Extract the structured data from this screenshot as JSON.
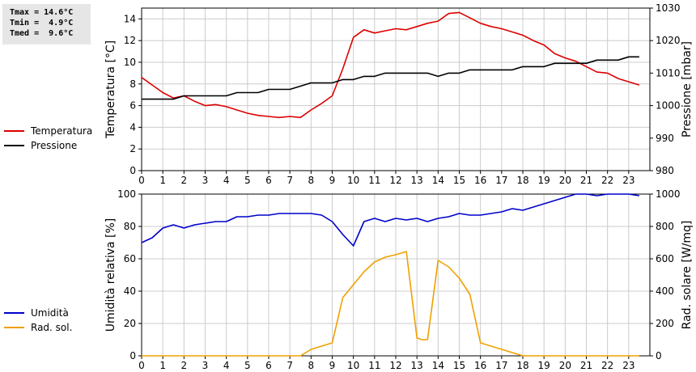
{
  "stats": {
    "tmax": "Tmax = 14.6°C",
    "tmin": "Tmin =  4.9°C",
    "tmed": "Tmed =  9.6°C"
  },
  "colors": {
    "temperature": "#dd0000",
    "pressure": "#000000",
    "humidity": "#0000cc",
    "solar": "#f0a000",
    "grid": "#cccccc"
  },
  "chart_data": [
    {
      "type": "line",
      "xlabel": "",
      "ylabel": "Temperatura [°C]",
      "y2label": "Pressione [mbar]",
      "xlim": [
        0,
        24
      ],
      "ylim": [
        0,
        15
      ],
      "y2lim": [
        980,
        1030
      ],
      "grid": true,
      "legend_placement": "left",
      "x_ticks": [
        "0",
        "1",
        "2",
        "3",
        "4",
        "5",
        "6",
        "7",
        "8",
        "9",
        "10",
        "11",
        "12",
        "13",
        "14",
        "15",
        "16",
        "17",
        "18",
        "19",
        "20",
        "21",
        "22",
        "23"
      ],
      "y_ticks": [
        "0",
        "2",
        "4",
        "6",
        "8",
        "10",
        "12",
        "14"
      ],
      "y2_ticks": [
        "980",
        "990",
        "1000",
        "1010",
        "1020",
        "1030"
      ],
      "series": [
        {
          "name": "Temperatura",
          "axis": "left",
          "color": "#dd0000",
          "x": [
            0,
            0.5,
            1,
            1.5,
            2,
            2.5,
            3,
            3.5,
            4,
            4.5,
            5,
            5.5,
            6,
            6.5,
            7,
            7.5,
            8,
            8.5,
            9,
            9.5,
            10,
            10.5,
            11,
            11.5,
            12,
            12.5,
            13,
            13.5,
            14,
            14.5,
            15,
            15.5,
            16,
            16.5,
            17,
            17.5,
            18,
            18.5,
            19,
            19.5,
            20,
            20.5,
            21,
            21.5,
            22,
            22.5,
            23,
            23.5
          ],
          "y": [
            8.6,
            7.9,
            7.2,
            6.7,
            6.9,
            6.4,
            6.0,
            6.1,
            5.9,
            5.6,
            5.3,
            5.1,
            5.0,
            4.9,
            5.0,
            4.9,
            5.6,
            6.2,
            6.9,
            9.4,
            12.3,
            13.0,
            12.7,
            12.9,
            13.1,
            13.0,
            13.3,
            13.6,
            13.8,
            14.5,
            14.6,
            14.1,
            13.6,
            13.3,
            13.1,
            12.8,
            12.5,
            12.0,
            11.6,
            10.8,
            10.4,
            10.1,
            9.6,
            9.1,
            9.0,
            8.5,
            8.2,
            7.9
          ]
        },
        {
          "name": "Pressione",
          "axis": "right",
          "color": "#000000",
          "x": [
            0,
            0.5,
            1,
            1.5,
            2,
            2.5,
            3,
            3.5,
            4,
            4.5,
            5,
            5.5,
            6,
            6.5,
            7,
            7.5,
            8,
            8.5,
            9,
            9.5,
            10,
            10.5,
            11,
            11.5,
            12,
            12.5,
            13,
            13.5,
            14,
            14.5,
            15,
            15.5,
            16,
            16.5,
            17,
            17.5,
            18,
            18.5,
            19,
            19.5,
            20,
            20.5,
            21,
            21.5,
            22,
            22.5,
            23,
            23.5
          ],
          "y": [
            1002,
            1002,
            1002,
            1002,
            1003,
            1003,
            1003,
            1003,
            1003,
            1004,
            1004,
            1004,
            1005,
            1005,
            1005,
            1006,
            1007,
            1007,
            1007,
            1008,
            1008,
            1009,
            1009,
            1010,
            1010,
            1010,
            1010,
            1010,
            1009,
            1010,
            1010,
            1011,
            1011,
            1011,
            1011,
            1011,
            1012,
            1012,
            1012,
            1013,
            1013,
            1013,
            1013,
            1014,
            1014,
            1014,
            1015,
            1015
          ]
        }
      ]
    },
    {
      "type": "line",
      "xlabel": "",
      "ylabel": "Umidità relativa [%]",
      "y2label": "Rad. solare [W/mq]",
      "xlim": [
        0,
        24
      ],
      "ylim": [
        0,
        100
      ],
      "y2lim": [
        0,
        1000
      ],
      "grid": true,
      "legend_placement": "left",
      "x_ticks": [
        "0",
        "1",
        "2",
        "3",
        "4",
        "5",
        "6",
        "7",
        "8",
        "9",
        "10",
        "11",
        "12",
        "13",
        "14",
        "15",
        "16",
        "17",
        "18",
        "19",
        "20",
        "21",
        "22",
        "23"
      ],
      "y_ticks": [
        "0",
        "20",
        "40",
        "60",
        "80",
        "100"
      ],
      "y2_ticks": [
        "0",
        "200",
        "400",
        "600",
        "800",
        "1000"
      ],
      "series": [
        {
          "name": "Umidità",
          "axis": "left",
          "color": "#0000cc",
          "x": [
            0,
            0.5,
            1,
            1.5,
            2,
            2.5,
            3,
            3.5,
            4,
            4.5,
            5,
            5.5,
            6,
            6.5,
            7,
            7.5,
            8,
            8.5,
            9,
            9.5,
            10,
            10.5,
            11,
            11.5,
            12,
            12.5,
            13,
            13.5,
            14,
            14.5,
            15,
            15.5,
            16,
            16.5,
            17,
            17.5,
            18,
            18.5,
            19,
            19.5,
            20,
            20.5,
            21,
            21.5,
            22,
            22.5,
            23,
            23.5
          ],
          "y": [
            70,
            73,
            79,
            81,
            79,
            81,
            82,
            83,
            83,
            86,
            86,
            87,
            87,
            88,
            88,
            88,
            88,
            87,
            83,
            75,
            68,
            83,
            85,
            83,
            85,
            84,
            85,
            83,
            85,
            86,
            88,
            87,
            87,
            88,
            89,
            91,
            90,
            92,
            94,
            96,
            98,
            100,
            100,
            99,
            100,
            100,
            100,
            99
          ]
        },
        {
          "name": "Rad. sol.",
          "axis": "right",
          "color": "#f0a000",
          "x": [
            0,
            0.5,
            1,
            1.5,
            2,
            2.5,
            3,
            3.5,
            4,
            4.5,
            5,
            5.5,
            6,
            6.5,
            7,
            7.5,
            8,
            8.5,
            9,
            9.5,
            10,
            10.5,
            11,
            11.5,
            12,
            12.5,
            13,
            13.25,
            13.5,
            14,
            14.5,
            15,
            15.5,
            16,
            16.5,
            17,
            17.5,
            18,
            18.5,
            19,
            19.5,
            20,
            20.5,
            21,
            21.5,
            22,
            22.5,
            23,
            23.5
          ],
          "y": [
            0,
            0,
            0,
            0,
            0,
            0,
            0,
            0,
            0,
            0,
            0,
            0,
            0,
            0,
            0,
            0,
            40,
            60,
            80,
            360,
            440,
            520,
            580,
            610,
            625,
            645,
            110,
            100,
            100,
            590,
            550,
            480,
            380,
            80,
            60,
            40,
            20,
            0,
            0,
            0,
            0,
            0,
            0,
            0,
            0,
            0,
            0,
            0,
            0
          ]
        }
      ]
    }
  ]
}
